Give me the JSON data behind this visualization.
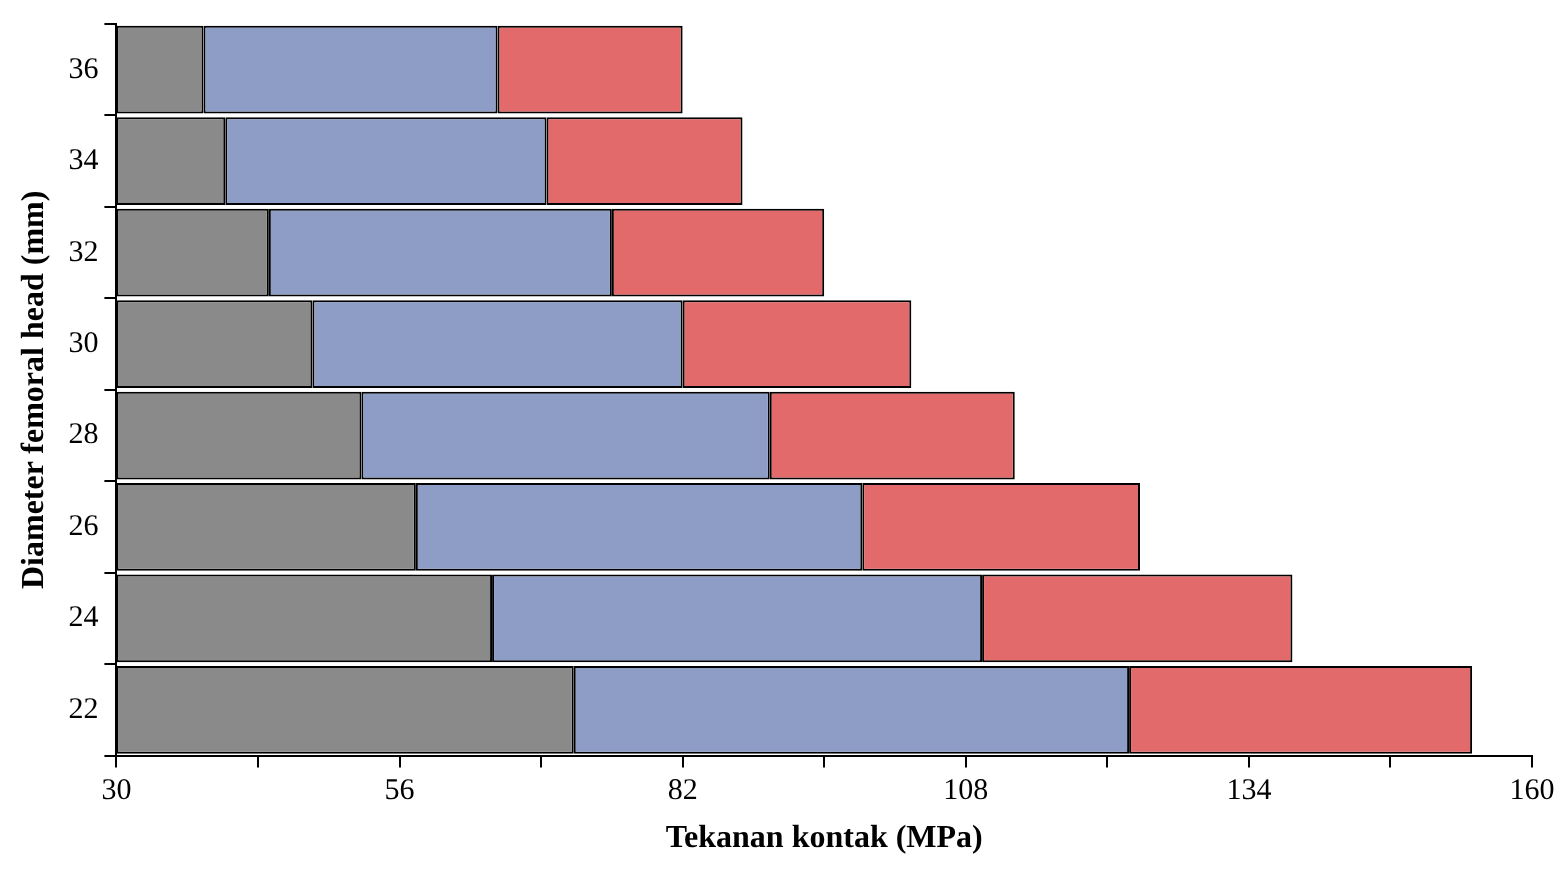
{
  "chart_data": {
    "type": "bar",
    "orientation": "horizontal",
    "xlabel": "Tekanan kontak (MPa)",
    "ylabel": "Diameter femoral head (mm)",
    "categories": [
      "36",
      "34",
      "32",
      "30",
      "28",
      "26",
      "24",
      "22"
    ],
    "series": [
      {
        "color": "#8a8a8a",
        "base": [
          30,
          30,
          30,
          30,
          30,
          30,
          30,
          30
        ],
        "values": [
          8,
          10,
          14,
          18,
          22.5,
          27.5,
          34.5,
          42
        ]
      },
      {
        "color": "#8d9dc6",
        "base": [
          38,
          40,
          44,
          48,
          52.5,
          57.5,
          64.5,
          72
        ],
        "values": [
          27,
          29.5,
          31.5,
          34,
          37.5,
          41,
          45,
          51
        ]
      },
      {
        "color": "#e26a6a",
        "base": [
          65,
          69.5,
          75.5,
          82,
          90,
          98.5,
          109.5,
          123
        ],
        "values": [
          17,
          18,
          19.5,
          21,
          22.5,
          25.5,
          28.5,
          31.5
        ]
      }
    ],
    "xlim": [
      30,
      160
    ],
    "xticks": [
      30,
      {
        "value": 43,
        "label": null
      },
      56,
      {
        "value": 69,
        "label": null
      },
      82,
      {
        "value": 95,
        "label": null
      },
      108,
      {
        "value": 121,
        "label": null
      },
      134,
      {
        "value": 147,
        "label": null
      },
      160
    ],
    "grid": false,
    "legend": false
  }
}
